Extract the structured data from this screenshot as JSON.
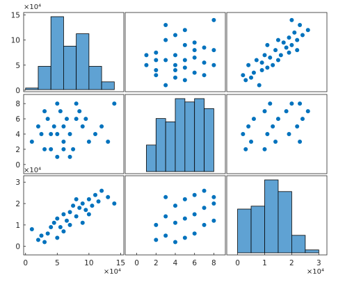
{
  "chart_data": {
    "type": "scatter-matrix",
    "title": "",
    "variables": [
      {
        "name": "",
        "scale_label": "×10⁴",
        "lim": [
          -0.3,
          15.5
        ],
        "ticks": [
          0,
          5,
          10,
          15
        ],
        "tick_labels": [
          "0",
          "5",
          "10",
          "15"
        ]
      },
      {
        "name": "",
        "scale_label": "",
        "lim": [
          -1.2,
          9.2
        ],
        "ticks": [
          0,
          2,
          4,
          6,
          8
        ],
        "tick_labels": [
          "0",
          "2",
          "4",
          "6",
          "8"
        ]
      },
      {
        "name": "",
        "scale_label": "×10⁴",
        "lim": [
          -0.4,
          3.3
        ],
        "ticks": [
          0,
          1,
          2,
          3
        ],
        "tick_labels": [
          "0",
          "1",
          "2",
          "3"
        ]
      }
    ],
    "x_scale_label": "×10⁴",
    "histograms": [
      {
        "variable": 0,
        "bin_edges": [
          0,
          2,
          4,
          6,
          8,
          10,
          12,
          14
        ],
        "counts": [
          1,
          15,
          47,
          28,
          36,
          15,
          5
        ]
      },
      {
        "variable": 1,
        "bin_edges": [
          1,
          2,
          3,
          4,
          5,
          6,
          7,
          8
        ],
        "counts": [
          8,
          16,
          15,
          22,
          21,
          22,
          19,
          10
        ]
      },
      {
        "variable": 2,
        "bin_edges": [
          0,
          0.5,
          1,
          1.5,
          2,
          2.5,
          3
        ],
        "counts": [
          15,
          16,
          25,
          21,
          6,
          1
        ]
      }
    ],
    "pairs": [
      {
        "x": 0,
        "y": 1,
        "points": [
          [
            1,
            3
          ],
          [
            2.5,
            4
          ],
          [
            3,
            7
          ],
          [
            2,
            5
          ],
          [
            4,
            2
          ],
          [
            3.5,
            6
          ],
          [
            5,
            8
          ],
          [
            6,
            3
          ],
          [
            4.5,
            5
          ],
          [
            5.5,
            7
          ],
          [
            7,
            4
          ],
          [
            6.5,
            6
          ],
          [
            8,
            8
          ],
          [
            7.5,
            2
          ],
          [
            9,
            5
          ],
          [
            8.5,
            7
          ],
          [
            10,
            3
          ],
          [
            9.5,
            6
          ],
          [
            11,
            4
          ],
          [
            12,
            5
          ],
          [
            13,
            3
          ],
          [
            14,
            8
          ],
          [
            5,
            1
          ],
          [
            6,
            2
          ],
          [
            7,
            1
          ],
          [
            3,
            2
          ],
          [
            4,
            4
          ],
          [
            5,
            4
          ],
          [
            6,
            5
          ],
          [
            8,
            6
          ]
        ]
      },
      {
        "x": 0,
        "y": 2,
        "points": [
          [
            1,
            0.8
          ],
          [
            2,
            0.3
          ],
          [
            2.5,
            0.5
          ],
          [
            3,
            0.2
          ],
          [
            3.5,
            0.6
          ],
          [
            4,
            0.9
          ],
          [
            4.5,
            1.1
          ],
          [
            5,
            1.3
          ],
          [
            5.5,
            0.9
          ],
          [
            6,
            1.5
          ],
          [
            6.5,
            1.2
          ],
          [
            7,
            1.6
          ],
          [
            7.5,
            1.9
          ],
          [
            8,
            1.4
          ],
          [
            8.5,
            1.8
          ],
          [
            9,
            2.0
          ],
          [
            9.5,
            1.7
          ],
          [
            10,
            2.2
          ],
          [
            10.5,
            1.9
          ],
          [
            11,
            2.4
          ],
          [
            11.5,
            2.1
          ],
          [
            12,
            2.6
          ],
          [
            13,
            2.3
          ],
          [
            14,
            2.0
          ],
          [
            5,
            0.4
          ],
          [
            6,
            0.7
          ],
          [
            7,
            1.0
          ],
          [
            8,
            2.2
          ],
          [
            9,
            1.1
          ],
          [
            10,
            1.5
          ]
        ]
      },
      {
        "x": 1,
        "y": 2,
        "points": [
          [
            2,
            0.3
          ],
          [
            2,
            1.0
          ],
          [
            3,
            0.5
          ],
          [
            3,
            1.4
          ],
          [
            3,
            2.3
          ],
          [
            4,
            0.2
          ],
          [
            4,
            1.1
          ],
          [
            4,
            1.9
          ],
          [
            5,
            0.4
          ],
          [
            5,
            1.3
          ],
          [
            5,
            2.2
          ],
          [
            6,
            0.6
          ],
          [
            6,
            1.5
          ],
          [
            6,
            2.4
          ],
          [
            7,
            1.0
          ],
          [
            7,
            1.8
          ],
          [
            7,
            2.6
          ],
          [
            8,
            1.2
          ],
          [
            8,
            2.0
          ],
          [
            8,
            2.3
          ]
        ]
      }
    ]
  }
}
